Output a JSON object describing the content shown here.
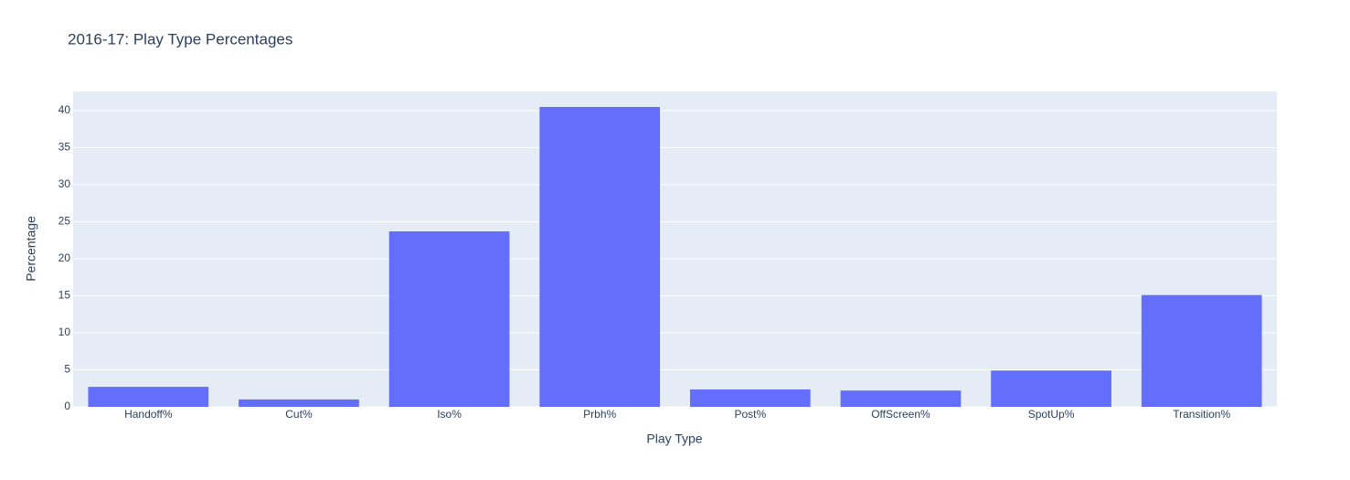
{
  "chart_data": {
    "type": "bar",
    "title": "2016-17: Play Type Percentages",
    "x_label": "Play Type",
    "y_label": "Percentage",
    "categories": [
      "Handoff%",
      "Cut%",
      "Iso%",
      "Prbh%",
      "Post%",
      "OffScreen%",
      "SpotUp%",
      "Transition%"
    ],
    "values": [
      2.7,
      1.0,
      23.7,
      40.5,
      2.35,
      2.2,
      4.9,
      15.1
    ],
    "color": "#636efa",
    "ylim": [
      0,
      42.6
    ],
    "yticks": [
      0,
      5,
      10,
      15,
      20,
      25,
      30,
      35,
      40
    ],
    "grid": true
  }
}
